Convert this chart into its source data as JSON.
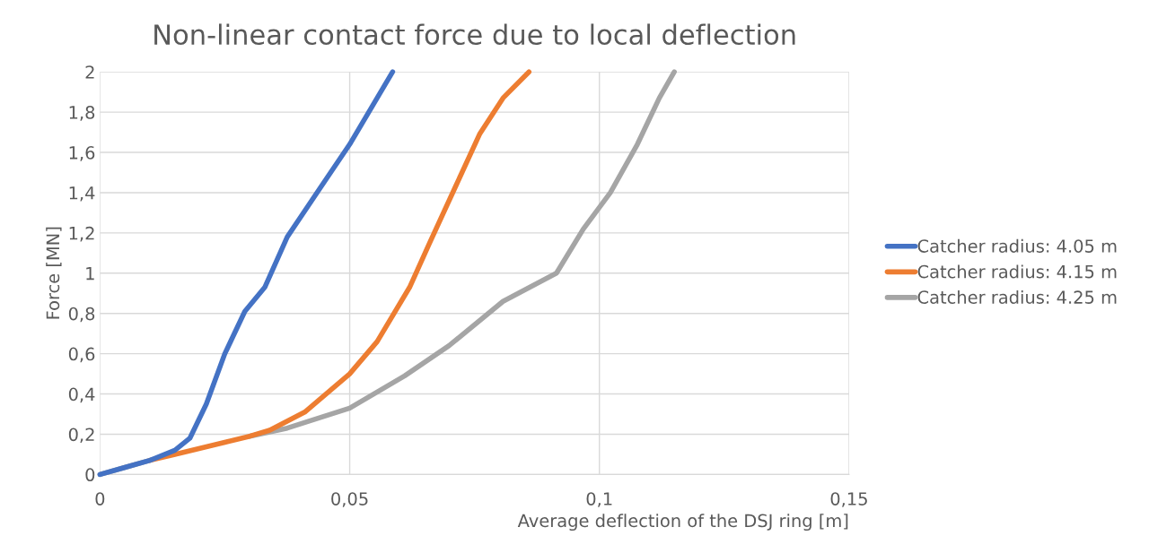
{
  "chart_data": {
    "type": "line",
    "title": "Non-linear contact force due to local deflection",
    "xlabel": "Average deflection of the DSJ ring [m]",
    "ylabel": "Force [MN]",
    "xlim": [
      0,
      0.15
    ],
    "ylim": [
      0,
      2
    ],
    "xticks": [
      0,
      {
        "value": 0.05,
        "label": "0,05"
      },
      {
        "value": 0.1,
        "label": "0,1"
      },
      {
        "value": 0.15,
        "label": "0,15"
      }
    ],
    "yticks": [
      0,
      {
        "value": 0.2,
        "label": "0,2"
      },
      {
        "value": 0.4,
        "label": "0,4"
      },
      {
        "value": 0.6,
        "label": "0,6"
      },
      {
        "value": 0.8,
        "label": "0,8"
      },
      1,
      {
        "value": 1.2,
        "label": "1,2"
      },
      {
        "value": 1.4,
        "label": "1,4"
      },
      {
        "value": 1.6,
        "label": "1,6"
      },
      {
        "value": 1.8,
        "label": "1,8"
      },
      2
    ],
    "grid": true,
    "legend": "right",
    "marker": "none",
    "line_style": "solid",
    "series": [
      {
        "name": "Catcher radius: 4.25 m",
        "color": "#a5a5a5",
        "x": [
          0,
          0.005,
          0.01,
          0.015,
          0.02,
          0.025,
          0.03,
          0.0375,
          0.05,
          0.061,
          0.0699,
          0.0807,
          0.0914,
          0.0968,
          0.1022,
          0.1076,
          0.112,
          0.115
        ],
        "values": [
          0,
          0.035,
          0.07,
          null,
          null,
          null,
          0.19,
          0.23,
          0.33,
          0.49,
          0.64,
          0.86,
          1.0,
          1.22,
          1.4,
          1.64,
          1.87,
          2.0
        ]
      },
      {
        "name": "Catcher radius: 4.15 m",
        "color": "#ed7d31",
        "x": [
          0.01,
          0.015,
          0.02,
          0.025,
          0.03,
          0.034,
          0.041,
          0.05,
          0.0555,
          0.062,
          0.066,
          0.071,
          0.076,
          0.0807,
          0.0859
        ],
        "values": [
          0.07,
          0.1,
          0.13,
          0.16,
          0.19,
          0.22,
          0.31,
          0.5,
          0.66,
          0.93,
          1.15,
          1.42,
          1.69,
          1.87,
          2.0
        ]
      },
      {
        "name": "Catcher radius: 4.05 m",
        "color": "#4472c4",
        "x": [
          0,
          0.005,
          0.01,
          0.015,
          0.018,
          0.0213,
          0.025,
          0.029,
          0.033,
          0.0375,
          0.044,
          0.05,
          0.0586
        ],
        "values": [
          0,
          0.035,
          0.07,
          0.12,
          0.18,
          0.35,
          0.6,
          0.81,
          0.93,
          1.18,
          1.42,
          1.64,
          2.0
        ]
      }
    ]
  }
}
